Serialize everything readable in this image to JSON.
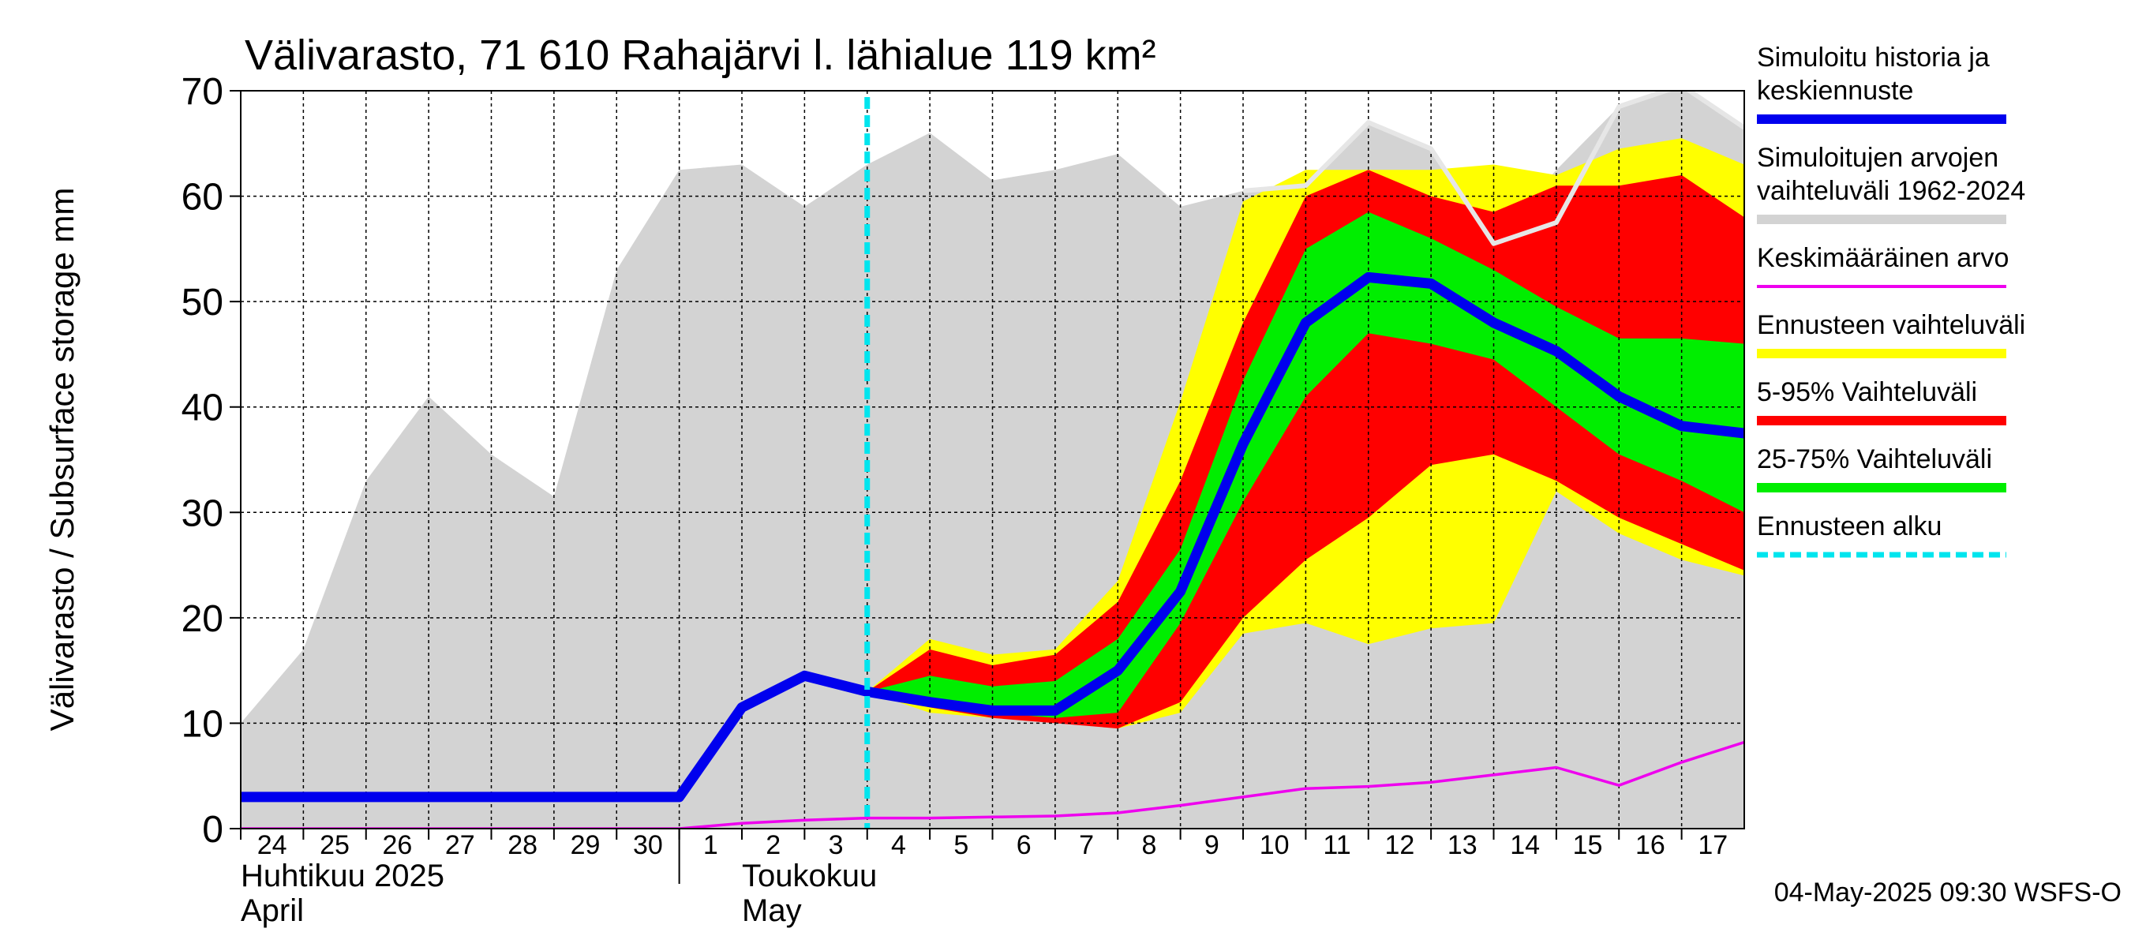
{
  "chart_data": {
    "type": "area",
    "title": "Välivarasto, 71 610 Rahajärvi l. lähialue 119 km²",
    "ylabel": "Välivarasto / Subsurface storage  mm",
    "ylim": [
      0,
      70
    ],
    "yticks": [
      0,
      10,
      20,
      30,
      40,
      50,
      60,
      70
    ],
    "grid": true,
    "legend_position": "right",
    "x_start": "2025-04-24",
    "x_end": "2025-05-18",
    "forecast_start": "2025-05-04",
    "x_tick_labels": [
      {
        "date": "2025-04-24",
        "label": "24"
      },
      {
        "date": "2025-04-25",
        "label": "25"
      },
      {
        "date": "2025-04-26",
        "label": "26"
      },
      {
        "date": "2025-04-27",
        "label": "27"
      },
      {
        "date": "2025-04-28",
        "label": "28"
      },
      {
        "date": "2025-04-29",
        "label": "29"
      },
      {
        "date": "2025-04-30",
        "label": "30"
      },
      {
        "date": "2025-05-01",
        "label": "1"
      },
      {
        "date": "2025-05-02",
        "label": "2"
      },
      {
        "date": "2025-05-03",
        "label": "3"
      },
      {
        "date": "2025-05-04",
        "label": "4"
      },
      {
        "date": "2025-05-05",
        "label": "5"
      },
      {
        "date": "2025-05-06",
        "label": "6"
      },
      {
        "date": "2025-05-07",
        "label": "7"
      },
      {
        "date": "2025-05-08",
        "label": "8"
      },
      {
        "date": "2025-05-09",
        "label": "9"
      },
      {
        "date": "2025-05-10",
        "label": "10"
      },
      {
        "date": "2025-05-11",
        "label": "11"
      },
      {
        "date": "2025-05-12",
        "label": "12"
      },
      {
        "date": "2025-05-13",
        "label": "13"
      },
      {
        "date": "2025-05-14",
        "label": "14"
      },
      {
        "date": "2025-05-15",
        "label": "15"
      },
      {
        "date": "2025-05-16",
        "label": "16"
      },
      {
        "date": "2025-05-17",
        "label": "17"
      }
    ],
    "month_labels": [
      {
        "date": "2025-04-24",
        "line1": "Huhtikuu  2025",
        "line2": "April"
      },
      {
        "date": "2025-05-02",
        "line1": "Toukokuu",
        "line2": "May"
      }
    ],
    "month_boundary": "2025-05-01",
    "series": [
      {
        "name": "Simuloitujen arvojen vaihteluväli 1962-2024",
        "kind": "band",
        "color": "#d3d3d3",
        "x": [
          "2025-04-24",
          "2025-04-25",
          "2025-04-26",
          "2025-04-27",
          "2025-04-28",
          "2025-04-29",
          "2025-04-30",
          "2025-05-01",
          "2025-05-02",
          "2025-05-03",
          "2025-05-04",
          "2025-05-05",
          "2025-05-06",
          "2025-05-07",
          "2025-05-08",
          "2025-05-09",
          "2025-05-10",
          "2025-05-11",
          "2025-05-12",
          "2025-05-13",
          "2025-05-14",
          "2025-05-15",
          "2025-05-16",
          "2025-05-17",
          "2025-05-18"
        ],
        "upper": [
          10,
          17,
          33,
          41,
          35.5,
          31.5,
          53,
          62.5,
          63,
          59,
          63,
          66,
          61.5,
          62.5,
          64,
          59,
          60.5,
          61,
          67,
          64.5,
          55.5,
          62.5,
          68.5,
          70.5,
          66.5
        ],
        "lower": [
          0,
          0,
          0,
          0,
          0,
          0,
          0,
          0,
          0,
          0,
          0,
          0,
          0,
          0,
          0,
          0,
          0,
          0,
          0,
          0,
          0,
          0,
          0,
          0,
          0
        ]
      },
      {
        "name": "Ennusteen vaihteluväli",
        "kind": "band",
        "color": "#ffff00",
        "x": [
          "2025-05-04",
          "2025-05-05",
          "2025-05-06",
          "2025-05-07",
          "2025-05-08",
          "2025-05-09",
          "2025-05-10",
          "2025-05-11",
          "2025-05-12",
          "2025-05-13",
          "2025-05-14",
          "2025-05-15",
          "2025-05-16",
          "2025-05-17",
          "2025-05-18"
        ],
        "upper": [
          13,
          18,
          16.5,
          17,
          23.5,
          40.5,
          59.5,
          62.5,
          62.5,
          62.5,
          63,
          62,
          64.5,
          65.5,
          63
        ],
        "lower": [
          13,
          11,
          10.5,
          10.5,
          9.5,
          11,
          18.5,
          19.5,
          17.5,
          19,
          19.5,
          32,
          28,
          25.5,
          24
        ]
      },
      {
        "name": "5-95% Vaihteluväli",
        "kind": "band",
        "color": "#ff0000",
        "x": [
          "2025-05-04",
          "2025-05-05",
          "2025-05-06",
          "2025-05-07",
          "2025-05-08",
          "2025-05-09",
          "2025-05-10",
          "2025-05-11",
          "2025-05-12",
          "2025-05-13",
          "2025-05-14",
          "2025-05-15",
          "2025-05-16",
          "2025-05-17",
          "2025-05-18"
        ],
        "upper": [
          13,
          17,
          15.5,
          16.5,
          21.5,
          33,
          48,
          60,
          62.5,
          60,
          58.5,
          61,
          61,
          62,
          58
        ],
        "lower": [
          13,
          11.5,
          10.5,
          10,
          9.5,
          12,
          20,
          25.5,
          29.5,
          34.5,
          35.5,
          33,
          29.5,
          27,
          24.5
        ]
      },
      {
        "name": "25-75% Vaihteluväli",
        "kind": "band",
        "color": "#00ee00",
        "x": [
          "2025-05-04",
          "2025-05-05",
          "2025-05-06",
          "2025-05-07",
          "2025-05-08",
          "2025-05-09",
          "2025-05-10",
          "2025-05-11",
          "2025-05-12",
          "2025-05-13",
          "2025-05-14",
          "2025-05-15",
          "2025-05-16",
          "2025-05-17",
          "2025-05-18"
        ],
        "upper": [
          13,
          14.5,
          13.5,
          14,
          18,
          26.5,
          42.5,
          55,
          58.5,
          56,
          53,
          49.5,
          46.5,
          46.5,
          46
        ],
        "lower": [
          13,
          12,
          11,
          10.5,
          11,
          19.5,
          31,
          41,
          47,
          46,
          44.5,
          40,
          35.5,
          33,
          30
        ]
      },
      {
        "name": "",
        "kind": "line",
        "color": "#e6e6e6",
        "x": [
          "2025-05-10",
          "2025-05-11",
          "2025-05-12",
          "2025-05-13",
          "2025-05-14",
          "2025-05-15",
          "2025-05-16",
          "2025-05-17",
          "2025-05-18"
        ],
        "y": [
          60.5,
          61,
          67,
          64.5,
          55.5,
          57.5,
          68.5,
          70.5,
          66.5
        ]
      },
      {
        "name": "Keskimääräinen arvo",
        "kind": "line",
        "color": "#ee00ee",
        "x": [
          "2025-04-24",
          "2025-04-25",
          "2025-04-26",
          "2025-04-27",
          "2025-04-28",
          "2025-04-29",
          "2025-04-30",
          "2025-05-01",
          "2025-05-02",
          "2025-05-03",
          "2025-05-04",
          "2025-05-05",
          "2025-05-06",
          "2025-05-07",
          "2025-05-08",
          "2025-05-09",
          "2025-05-10",
          "2025-05-11",
          "2025-05-12",
          "2025-05-13",
          "2025-05-14",
          "2025-05-15",
          "2025-05-16",
          "2025-05-17",
          "2025-05-18"
        ],
        "y": [
          0,
          0,
          0,
          0,
          0,
          0,
          0,
          0,
          0.5,
          0.8,
          1,
          1,
          1.1,
          1.2,
          1.5,
          2.2,
          3,
          3.8,
          4,
          4.4,
          5.1,
          5.8,
          4.1,
          6.3,
          8.2
        ]
      },
      {
        "name": "Simuloitu historia ja keskiennuste",
        "kind": "line",
        "color": "#0000ee",
        "x": [
          "2025-04-24",
          "2025-04-25",
          "2025-04-26",
          "2025-04-27",
          "2025-04-28",
          "2025-04-29",
          "2025-04-30",
          "2025-05-01",
          "2025-05-02",
          "2025-05-03",
          "2025-05-04",
          "2025-05-05",
          "2025-05-06",
          "2025-05-07",
          "2025-05-08",
          "2025-05-09",
          "2025-05-10",
          "2025-05-11",
          "2025-05-12",
          "2025-05-13",
          "2025-05-14",
          "2025-05-15",
          "2025-05-16",
          "2025-05-17",
          "2025-05-18"
        ],
        "y": [
          3,
          3,
          3,
          3,
          3,
          3,
          3,
          3,
          11.5,
          14.5,
          13,
          12,
          11.2,
          11.2,
          15,
          22.5,
          36.5,
          48,
          52.3,
          51.7,
          48,
          45.3,
          41,
          38.2,
          37.5
        ]
      }
    ],
    "legend": [
      {
        "label_lines": [
          "Simuloitu historia ja",
          "keskiennuste"
        ],
        "color": "#0000ee",
        "style": "thick"
      },
      {
        "label_lines": [
          "Simuloitujen arvojen",
          "vaihteluväli 1962-2024"
        ],
        "color": "#d3d3d3",
        "style": "thick"
      },
      {
        "label_lines": [
          "Keskimääräinen arvo"
        ],
        "color": "#ee00ee",
        "style": "thin"
      },
      {
        "label_lines": [
          "Ennusteen vaihteluväli"
        ],
        "color": "#ffff00",
        "style": "thick"
      },
      {
        "label_lines": [
          "5-95% Vaihteluväli"
        ],
        "color": "#ff0000",
        "style": "thick"
      },
      {
        "label_lines": [
          "25-75% Vaihteluväli"
        ],
        "color": "#00ee00",
        "style": "thick"
      },
      {
        "label_lines": [
          "Ennusteen alku"
        ],
        "color": "#00e5ee",
        "style": "dashed"
      }
    ],
    "footer": "04-May-2025 09:30 WSFS-O"
  }
}
